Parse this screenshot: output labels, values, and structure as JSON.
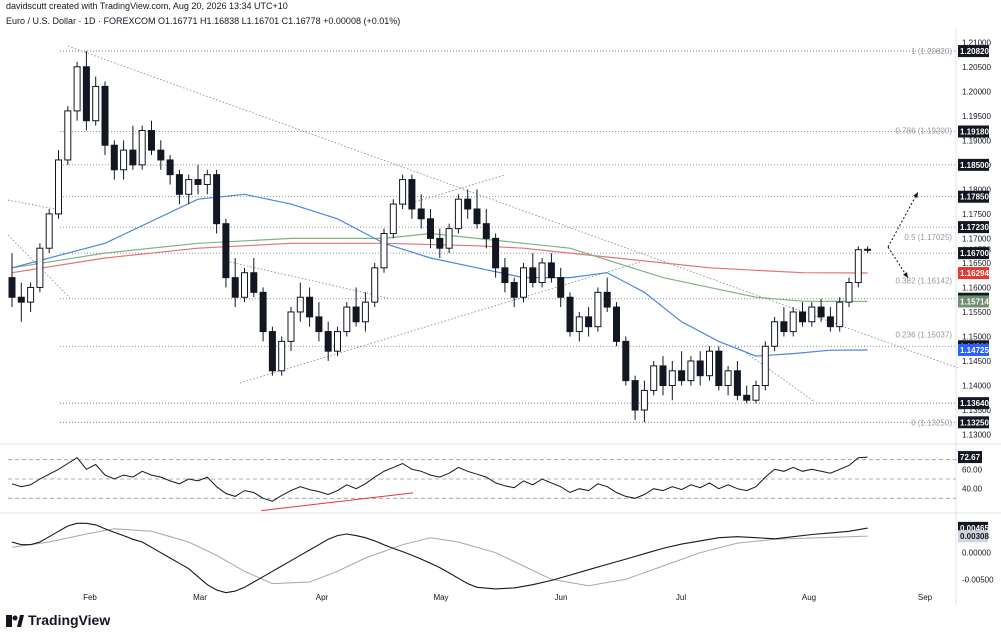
{
  "header": {
    "created_by": "davidscutt created with TradingView.com, Aug 20, 2026 13:34 UTC+10",
    "symbol_line": "Euro / U.S. Dollar · 1D · FOREXCOM  O1.16771  H1.16838  L1.16701  C1.16778  +0.00008 (+0.01%)"
  },
  "branding": {
    "logo_text": "TradingView"
  },
  "colors": {
    "up": "#ffffff",
    "down": "#131722",
    "ma_blue": "#4a86e0",
    "ma_green": "#7fb37f",
    "ma_red": "#e57373",
    "rsi_trend": "#e53935",
    "macd_line": "#131722",
    "signal_line": "#a7a7a7"
  },
  "chart_data": {
    "type": "candlestick",
    "x_axis_months": [
      "Feb",
      "Mar",
      "Apr",
      "May",
      "Jun",
      "Jul",
      "Aug",
      "Sep"
    ],
    "y_ticks": [
      "1.21000",
      "1.20500",
      "1.20000",
      "1.19500",
      "1.19000",
      "1.18500",
      "1.18000",
      "1.17500",
      "1.17000",
      "1.16500",
      "1.16000",
      "1.15500",
      "1.15000",
      "1.14500",
      "1.14000",
      "1.13500",
      "1.13000"
    ],
    "ylim": [
      1.1295,
      1.2125
    ],
    "last_price": "1.16778",
    "price_labels": [
      {
        "text": "1.20820",
        "value": 1.2082,
        "style": "dark"
      },
      {
        "text": "1.19180",
        "value": 1.1918,
        "style": "dark"
      },
      {
        "text": "1.18500",
        "value": 1.185,
        "style": "dark"
      },
      {
        "text": "1.17850",
        "value": 1.1785,
        "style": "dark"
      },
      {
        "text": "1.17230",
        "value": 1.1723,
        "style": "dark"
      },
      {
        "text": "1.16700",
        "value": 1.167,
        "style": "dark"
      },
      {
        "text": "1.16294",
        "value": 1.16294,
        "style": "red"
      },
      {
        "text": "1.15770",
        "value": 1.1577,
        "style": "dark"
      },
      {
        "text": "1.15714",
        "value": 1.15714,
        "style": "green"
      },
      {
        "text": "1.14800",
        "value": 1.148,
        "style": "dark"
      },
      {
        "text": "1.14725",
        "value": 1.14725,
        "style": "blue"
      },
      {
        "text": "1.13640",
        "value": 1.1364,
        "style": "dark"
      },
      {
        "text": "1.13250",
        "value": 1.1325,
        "style": "dark"
      }
    ],
    "fib_levels": [
      {
        "label": "1 (1.20820)",
        "value": 1.2082
      },
      {
        "label": "0.786 (1.19200)",
        "value": 1.192
      },
      {
        "label": "0.5 (1.17025)",
        "value": 1.17025
      },
      {
        "label": "0.382 (1.16142)",
        "value": 1.16142
      },
      {
        "label": "0.236 (1.15037)",
        "value": 1.15037
      },
      {
        "label": "0 (1.13250)",
        "value": 1.1325
      }
    ],
    "horizontal_levels": [
      1.2082,
      1.1918,
      1.185,
      1.1785,
      1.1723,
      1.167,
      1.1577,
      1.148,
      1.1364,
      1.1325
    ],
    "candles": [
      [
        1.162,
        1.167,
        1.156,
        1.158
      ],
      [
        1.158,
        1.161,
        1.153,
        1.157
      ],
      [
        1.157,
        1.161,
        1.155,
        1.16
      ],
      [
        1.16,
        1.169,
        1.159,
        1.168
      ],
      [
        1.168,
        1.176,
        1.167,
        1.175
      ],
      [
        1.175,
        1.188,
        1.174,
        1.186
      ],
      [
        1.186,
        1.197,
        1.185,
        1.196
      ],
      [
        1.196,
        1.206,
        1.194,
        1.205
      ],
      [
        1.205,
        1.2082,
        1.192,
        1.194
      ],
      [
        1.194,
        1.203,
        1.193,
        1.201
      ],
      [
        1.201,
        1.202,
        1.187,
        1.189
      ],
      [
        1.189,
        1.19,
        1.182,
        1.184
      ],
      [
        1.184,
        1.19,
        1.182,
        1.188
      ],
      [
        1.188,
        1.193,
        1.184,
        1.185
      ],
      [
        1.185,
        1.193,
        1.184,
        1.192
      ],
      [
        1.192,
        1.194,
        1.187,
        1.188
      ],
      [
        1.188,
        1.19,
        1.184,
        1.186
      ],
      [
        1.186,
        1.187,
        1.181,
        1.183
      ],
      [
        1.183,
        1.184,
        1.177,
        1.179
      ],
      [
        1.179,
        1.183,
        1.177,
        1.182
      ],
      [
        1.182,
        1.185,
        1.179,
        1.181
      ],
      [
        1.181,
        1.184,
        1.179,
        1.183
      ],
      [
        1.183,
        1.184,
        1.171,
        1.173
      ],
      [
        1.173,
        1.174,
        1.16,
        1.162
      ],
      [
        1.162,
        1.166,
        1.156,
        1.158
      ],
      [
        1.158,
        1.164,
        1.157,
        1.163
      ],
      [
        1.163,
        1.166,
        1.158,
        1.159
      ],
      [
        1.159,
        1.16,
        1.149,
        1.151
      ],
      [
        1.151,
        1.152,
        1.142,
        1.143
      ],
      [
        1.143,
        1.15,
        1.142,
        1.149
      ],
      [
        1.149,
        1.156,
        1.147,
        1.155
      ],
      [
        1.155,
        1.161,
        1.153,
        1.158
      ],
      [
        1.158,
        1.16,
        1.152,
        1.154
      ],
      [
        1.154,
        1.157,
        1.149,
        1.151
      ],
      [
        1.151,
        1.153,
        1.145,
        1.147
      ],
      [
        1.147,
        1.152,
        1.146,
        1.151
      ],
      [
        1.151,
        1.157,
        1.15,
        1.156
      ],
      [
        1.156,
        1.16,
        1.152,
        1.153
      ],
      [
        1.153,
        1.159,
        1.151,
        1.157
      ],
      [
        1.157,
        1.165,
        1.156,
        1.164
      ],
      [
        1.164,
        1.172,
        1.163,
        1.171
      ],
      [
        1.171,
        1.178,
        1.17,
        1.177
      ],
      [
        1.177,
        1.183,
        1.176,
        1.182
      ],
      [
        1.182,
        1.183,
        1.174,
        1.176
      ],
      [
        1.176,
        1.179,
        1.172,
        1.174
      ],
      [
        1.174,
        1.176,
        1.168,
        1.17
      ],
      [
        1.17,
        1.172,
        1.166,
        1.168
      ],
      [
        1.168,
        1.173,
        1.167,
        1.172
      ],
      [
        1.172,
        1.179,
        1.171,
        1.178
      ],
      [
        1.178,
        1.18,
        1.174,
        1.176
      ],
      [
        1.176,
        1.18,
        1.172,
        1.173
      ],
      [
        1.173,
        1.176,
        1.168,
        1.17
      ],
      [
        1.17,
        1.171,
        1.162,
        1.164
      ],
      [
        1.164,
        1.166,
        1.159,
        1.161
      ],
      [
        1.161,
        1.162,
        1.156,
        1.158
      ],
      [
        1.158,
        1.165,
        1.157,
        1.164
      ],
      [
        1.164,
        1.167,
        1.16,
        1.161
      ],
      [
        1.161,
        1.166,
        1.16,
        1.165
      ],
      [
        1.165,
        1.167,
        1.161,
        1.162
      ],
      [
        1.162,
        1.164,
        1.156,
        1.158
      ],
      [
        1.158,
        1.159,
        1.15,
        1.151
      ],
      [
        1.151,
        1.155,
        1.149,
        1.154
      ],
      [
        1.154,
        1.156,
        1.15,
        1.152
      ],
      [
        1.152,
        1.16,
        1.151,
        1.159
      ],
      [
        1.159,
        1.162,
        1.155,
        1.156
      ],
      [
        1.156,
        1.157,
        1.148,
        1.149
      ],
      [
        1.149,
        1.15,
        1.14,
        1.141
      ],
      [
        1.141,
        1.142,
        1.133,
        1.135
      ],
      [
        1.135,
        1.141,
        1.1325,
        1.139
      ],
      [
        1.139,
        1.145,
        1.138,
        1.144
      ],
      [
        1.144,
        1.146,
        1.138,
        1.14
      ],
      [
        1.14,
        1.145,
        1.137,
        1.143
      ],
      [
        1.143,
        1.147,
        1.14,
        1.141
      ],
      [
        1.141,
        1.146,
        1.14,
        1.145
      ],
      [
        1.145,
        1.147,
        1.14,
        1.142
      ],
      [
        1.142,
        1.148,
        1.141,
        1.147
      ],
      [
        1.147,
        1.148,
        1.139,
        1.14
      ],
      [
        1.14,
        1.144,
        1.138,
        1.143
      ],
      [
        1.143,
        1.145,
        1.137,
        1.138
      ],
      [
        1.138,
        1.14,
        1.1364,
        1.137
      ],
      [
        1.137,
        1.141,
        1.1364,
        1.14
      ],
      [
        1.14,
        1.149,
        1.139,
        1.148
      ],
      [
        1.148,
        1.154,
        1.147,
        1.153
      ],
      [
        1.153,
        1.156,
        1.15,
        1.151
      ],
      [
        1.151,
        1.156,
        1.15,
        1.155
      ],
      [
        1.155,
        1.157,
        1.152,
        1.153
      ],
      [
        1.153,
        1.157,
        1.152,
        1.156
      ],
      [
        1.156,
        1.1577,
        1.153,
        1.154
      ],
      [
        1.154,
        1.156,
        1.151,
        1.152
      ],
      [
        1.152,
        1.158,
        1.151,
        1.157
      ],
      [
        1.157,
        1.162,
        1.156,
        1.161
      ],
      [
        1.161,
        1.1684,
        1.16,
        1.1677
      ],
      [
        1.16771,
        1.16838,
        1.16701,
        1.16778
      ]
    ],
    "ma_blue": [
      [
        0,
        1.164
      ],
      [
        10,
        1.169
      ],
      [
        20,
        1.178
      ],
      [
        25,
        1.179
      ],
      [
        30,
        1.177
      ],
      [
        35,
        1.174
      ],
      [
        40,
        1.169
      ],
      [
        45,
        1.166
      ],
      [
        50,
        1.164
      ],
      [
        55,
        1.162
      ],
      [
        60,
        1.162
      ],
      [
        64,
        1.163
      ],
      [
        68,
        1.159
      ],
      [
        72,
        1.153
      ],
      [
        76,
        1.149
      ],
      [
        80,
        1.146
      ],
      [
        84,
        1.1465
      ],
      [
        88,
        1.1472
      ],
      [
        92,
        1.14725
      ]
    ],
    "ma_green": [
      [
        0,
        1.164
      ],
      [
        10,
        1.167
      ],
      [
        20,
        1.169
      ],
      [
        30,
        1.17
      ],
      [
        40,
        1.17
      ],
      [
        45,
        1.171
      ],
      [
        50,
        1.17
      ],
      [
        55,
        1.169
      ],
      [
        60,
        1.168
      ],
      [
        65,
        1.165
      ],
      [
        70,
        1.162
      ],
      [
        75,
        1.16
      ],
      [
        80,
        1.158
      ],
      [
        85,
        1.1572
      ],
      [
        92,
        1.15714
      ]
    ],
    "ma_red": [
      [
        0,
        1.163
      ],
      [
        10,
        1.166
      ],
      [
        20,
        1.168
      ],
      [
        30,
        1.169
      ],
      [
        40,
        1.169
      ],
      [
        50,
        1.1685
      ],
      [
        55,
        1.168
      ],
      [
        60,
        1.167
      ],
      [
        65,
        1.166
      ],
      [
        70,
        1.165
      ],
      [
        75,
        1.164
      ],
      [
        80,
        1.1635
      ],
      [
        85,
        1.163
      ],
      [
        92,
        1.16294
      ]
    ],
    "rsi": {
      "last_label": "72.67",
      "ticks": [
        "60.00",
        "40.00"
      ],
      "ylim": [
        20,
        80
      ],
      "values": [
        45,
        42,
        44,
        50,
        55,
        60,
        66,
        72,
        60,
        65,
        54,
        50,
        54,
        52,
        58,
        54,
        52,
        48,
        45,
        50,
        48,
        52,
        42,
        35,
        32,
        38,
        36,
        30,
        27,
        33,
        38,
        42,
        39,
        37,
        34,
        38,
        44,
        40,
        45,
        52,
        58,
        62,
        66,
        60,
        58,
        54,
        52,
        56,
        62,
        58,
        55,
        52,
        46,
        43,
        41,
        48,
        44,
        50,
        46,
        42,
        36,
        40,
        38,
        45,
        42,
        36,
        32,
        30,
        34,
        40,
        38,
        42,
        39,
        44,
        41,
        46,
        40,
        44,
        40,
        38,
        42,
        52,
        60,
        58,
        62,
        58,
        60,
        58,
        56,
        60,
        64,
        72,
        72.67
      ],
      "trendline": [
        [
          1,
          38
        ],
        [
          45,
          46
        ]
      ]
    },
    "macd": {
      "labels": [
        "0.00465",
        "0.00308"
      ],
      "ticks": [
        "0.00000",
        "-0.00500"
      ],
      "ylim": [
        -0.0085,
        0.0065
      ],
      "macd_values": [
        0.002,
        0.0015,
        0.0015,
        0.002,
        0.003,
        0.004,
        0.005,
        0.0055,
        0.0055,
        0.0052,
        0.0045,
        0.0038,
        0.0032,
        0.0025,
        0.002,
        0.001,
        0.0,
        -0.001,
        -0.002,
        -0.003,
        -0.0045,
        -0.006,
        -0.007,
        -0.0075,
        -0.0072,
        -0.0065,
        -0.0055,
        -0.0045,
        -0.0035,
        -0.0025,
        -0.0015,
        -0.0005,
        0.0005,
        0.0015,
        0.0025,
        0.0032,
        0.0035,
        0.0032,
        0.0028,
        0.0022,
        0.0015,
        0.0008,
        0.0002,
        -0.0005,
        -0.0012,
        -0.002,
        -0.0028,
        -0.0038,
        -0.0048,
        -0.0058,
        -0.0065,
        -0.0068,
        -0.0066,
        -0.006,
        -0.0052,
        -0.0042,
        -0.0032,
        -0.0022,
        -0.0012,
        -0.0002,
        0.0008,
        0.0016,
        0.0022,
        0.0028,
        0.003,
        0.0028,
        0.0026,
        0.003,
        0.0034,
        0.0037,
        0.004,
        0.0046
      ],
      "macd_x": [
        0,
        1,
        2,
        3,
        4,
        5,
        6,
        7,
        8,
        9,
        10,
        11,
        12,
        13,
        14,
        15,
        16,
        17,
        18,
        19,
        20,
        21,
        22,
        23,
        24,
        25,
        26,
        27,
        28,
        29,
        30,
        31,
        32,
        33,
        34,
        35,
        36,
        37,
        38,
        39,
        40,
        41,
        42,
        43,
        44,
        45,
        46,
        47,
        48,
        49,
        50,
        52,
        54,
        56,
        58,
        60,
        62,
        64,
        66,
        68,
        70,
        72,
        74,
        76,
        78,
        80,
        82,
        84,
        86,
        88,
        90,
        92
      ],
      "signal_values": [
        0.001,
        0.002,
        0.0035,
        0.0045,
        0.004,
        0.002,
        -0.0005,
        -0.0035,
        -0.0058,
        -0.0055,
        -0.0035,
        -0.001,
        0.0015,
        0.0028,
        0.002,
        0.0,
        -0.0025,
        -0.005,
        -0.0062,
        -0.005,
        -0.0025,
        0.0,
        0.0018,
        0.0025,
        0.0031
      ],
      "signal_x": [
        0,
        4,
        8,
        11,
        15,
        19,
        22,
        25,
        28,
        32,
        35,
        38,
        42,
        45,
        48,
        52,
        55,
        58,
        62,
        66,
        70,
        74,
        78,
        82,
        92
      ]
    }
  }
}
